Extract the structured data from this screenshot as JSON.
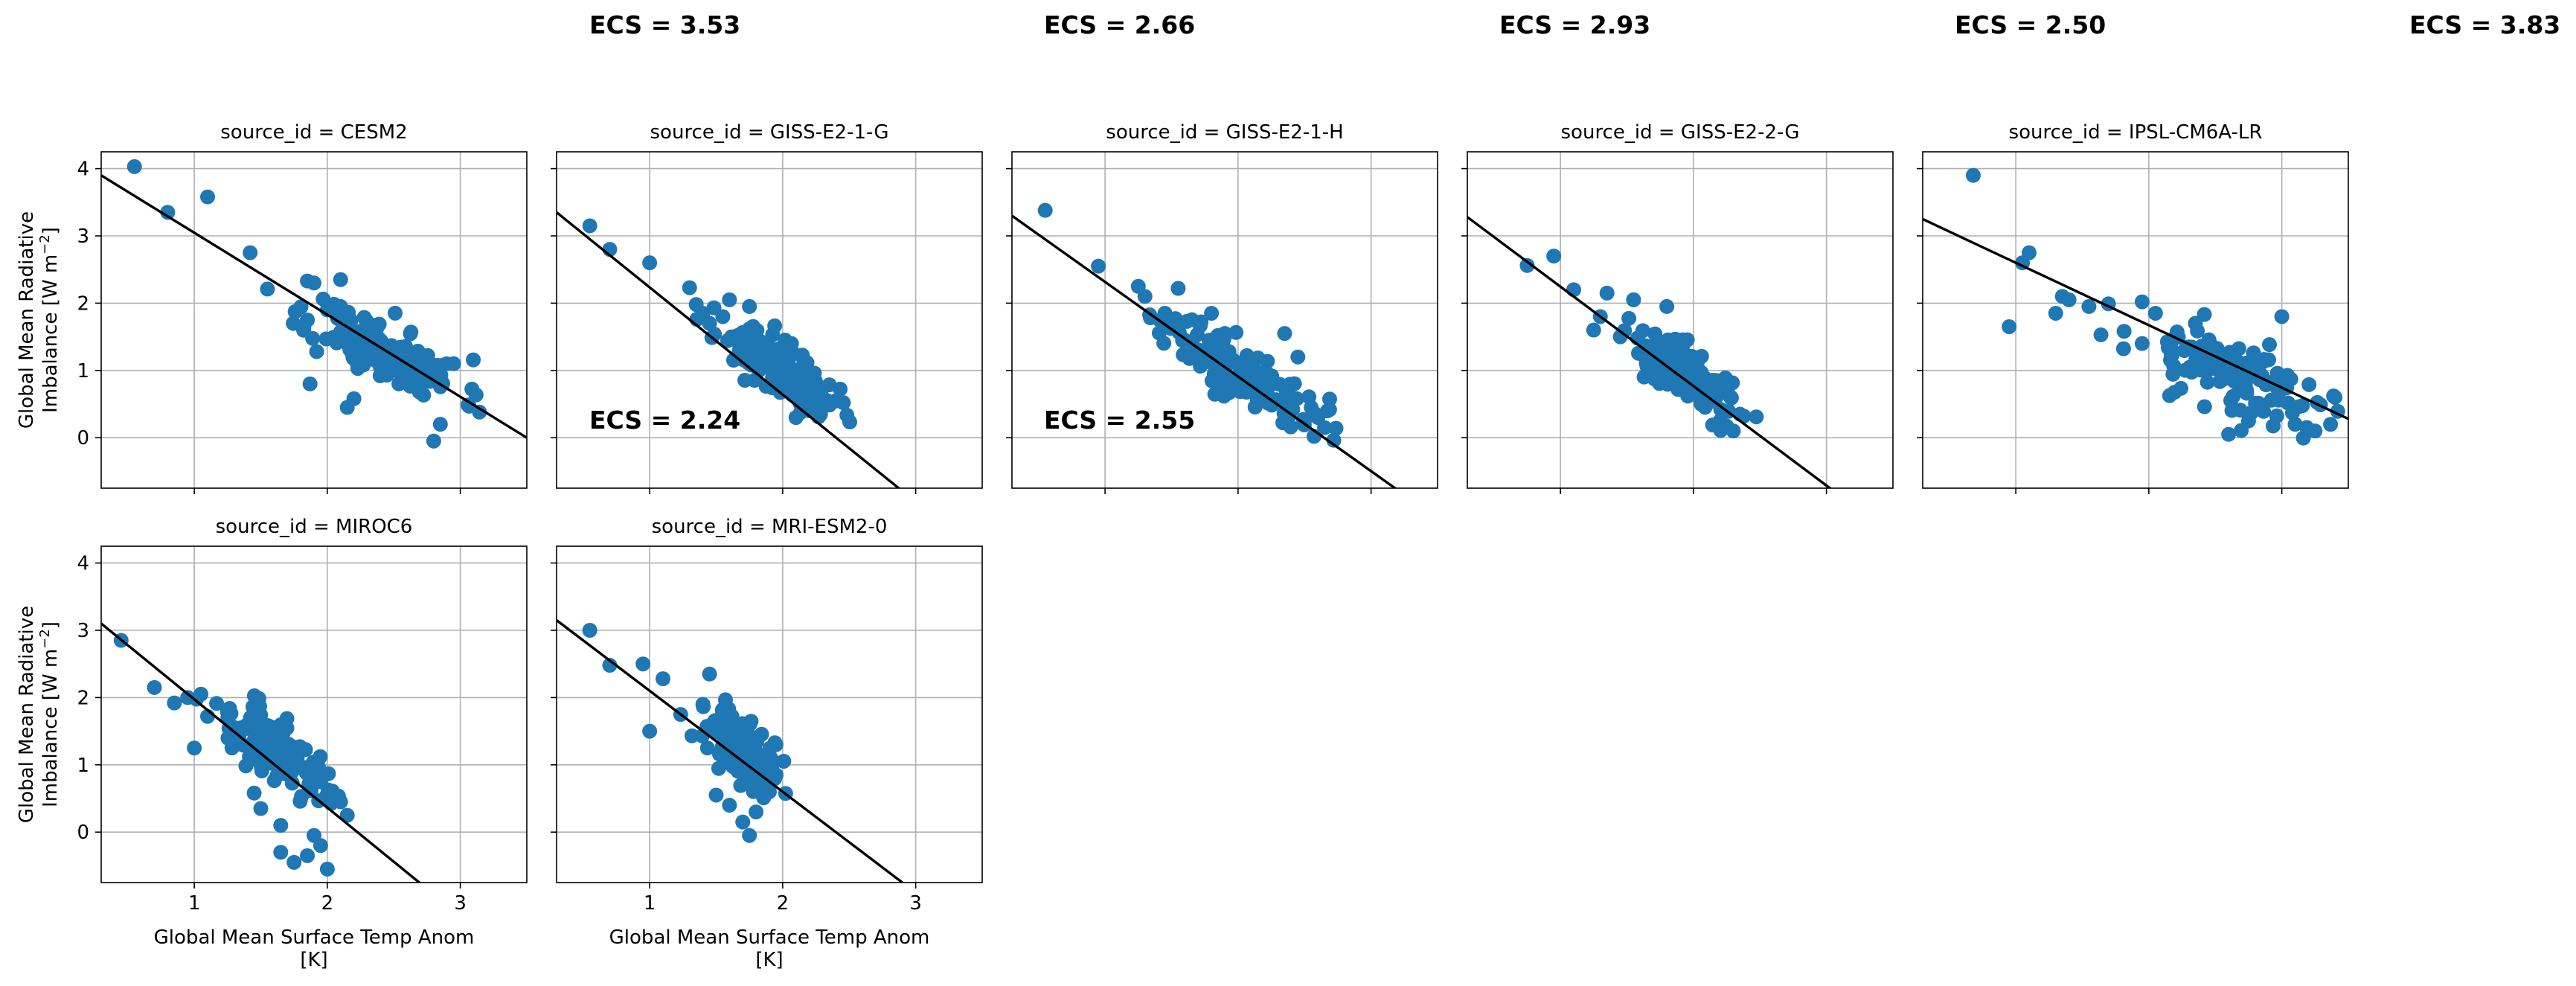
{
  "colors": {
    "point": "#1f77b4",
    "fit_line": "#000000",
    "grid": "#b0b0b0",
    "axes": "#000000",
    "background": "#ffffff"
  },
  "ecs_labels": [
    {
      "text": "ECS = 3.53",
      "facet": 0
    },
    {
      "text": "ECS = 2.66",
      "facet": 1
    },
    {
      "text": "ECS = 2.93",
      "facet": 2
    },
    {
      "text": "ECS = 2.50",
      "facet": 3
    },
    {
      "text": "ECS = 3.83",
      "facet": 4
    },
    {
      "text": "ECS = 2.24",
      "facet": 5
    },
    {
      "text": "ECS = 2.55",
      "facet": 6
    }
  ],
  "chart_data": {
    "type": "scatter",
    "grid": true,
    "sharex": true,
    "sharey": true,
    "xlim": [
      0.3,
      3.5
    ],
    "ylim": [
      -0.75,
      4.25
    ],
    "xticks": [
      "1",
      "2",
      "3"
    ],
    "yticks": [
      "0",
      "1",
      "2",
      "3",
      "4"
    ],
    "ylabel": [
      "Global Mean Radiative",
      "Imbalance [W m",
      "−2",
      "]"
    ],
    "xlabel": [
      "Global Mean Surface Temp Anom",
      "[K]"
    ],
    "facets": [
      {
        "title": "source_id = CESM2",
        "fit": {
          "x": [
            0.3,
            3.5
          ],
          "y": [
            3.9,
            0.0
          ]
        },
        "cluster": {
          "cx": 2.45,
          "cy": 1.25,
          "sx": 0.28,
          "sy": 0.32,
          "n": 130,
          "seed": 11,
          "dir": -1.1
        },
        "points": [
          [
            0.55,
            4.03
          ],
          [
            0.8,
            3.35
          ],
          [
            1.1,
            3.58
          ],
          [
            1.42,
            2.75
          ],
          [
            1.55,
            2.21
          ],
          [
            1.85,
            2.33
          ],
          [
            1.9,
            2.3
          ],
          [
            1.85,
            1.75
          ],
          [
            1.92,
            1.28
          ],
          [
            1.87,
            0.8
          ],
          [
            2.1,
            2.35
          ],
          [
            2.15,
            0.45
          ],
          [
            2.2,
            0.58
          ],
          [
            2.8,
            -0.05
          ],
          [
            2.85,
            0.2
          ],
          [
            2.95,
            1.1
          ],
          [
            2.1,
            1.95
          ],
          [
            2.0,
            1.9
          ]
        ]
      },
      {
        "title": "source_id = GISS-E2-1-G",
        "fit": {
          "x": [
            0.3,
            3.5
          ],
          "y": [
            3.35,
            -1.75
          ]
        },
        "cluster": {
          "cx": 1.95,
          "cy": 1.05,
          "sx": 0.22,
          "sy": 0.26,
          "n": 140,
          "seed": 23,
          "dir": -1.6
        },
        "points": [
          [
            0.55,
            3.15
          ],
          [
            0.7,
            2.8
          ],
          [
            1.0,
            2.6
          ],
          [
            1.3,
            2.23
          ],
          [
            1.35,
            1.98
          ],
          [
            1.4,
            1.85
          ],
          [
            1.45,
            1.7
          ],
          [
            1.55,
            1.8
          ],
          [
            1.6,
            2.05
          ],
          [
            1.75,
            1.95
          ],
          [
            2.2,
            0.4
          ],
          [
            2.4,
            0.55
          ],
          [
            2.3,
            0.6
          ],
          [
            2.1,
            0.3
          ]
        ]
      },
      {
        "title": "source_id = GISS-E2-1-H",
        "fit": {
          "x": [
            0.3,
            3.5
          ],
          "y": [
            3.3,
            -1.2
          ]
        },
        "cluster": {
          "cx": 2.05,
          "cy": 0.95,
          "sx": 0.3,
          "sy": 0.3,
          "n": 130,
          "seed": 37,
          "dir": -1.3
        },
        "points": [
          [
            0.55,
            3.38
          ],
          [
            0.95,
            2.55
          ],
          [
            1.25,
            2.25
          ],
          [
            1.3,
            2.1
          ],
          [
            1.45,
            1.85
          ],
          [
            1.55,
            2.22
          ],
          [
            1.5,
            1.75
          ],
          [
            1.6,
            1.45
          ],
          [
            1.65,
            1.2
          ],
          [
            1.8,
            1.85
          ],
          [
            1.9,
            1.55
          ],
          [
            2.35,
            1.55
          ],
          [
            2.45,
            1.2
          ],
          [
            2.6,
            0.3
          ],
          [
            2.65,
            0.15
          ],
          [
            2.55,
            0.45
          ],
          [
            2.4,
            0.55
          ]
        ]
      },
      {
        "title": "source_id = GISS-E2-2-G",
        "fit": {
          "x": [
            0.3,
            3.5
          ],
          "y": [
            3.28,
            -1.45
          ]
        },
        "cluster": {
          "cx": 1.95,
          "cy": 0.95,
          "sx": 0.2,
          "sy": 0.28,
          "n": 130,
          "seed": 41,
          "dir": -1.5
        },
        "points": [
          [
            0.75,
            2.56
          ],
          [
            0.95,
            2.7
          ],
          [
            1.1,
            2.2
          ],
          [
            1.35,
            2.15
          ],
          [
            1.55,
            2.05
          ],
          [
            1.8,
            1.95
          ],
          [
            1.3,
            1.8
          ],
          [
            1.45,
            1.5
          ],
          [
            1.25,
            1.6
          ],
          [
            2.35,
            0.35
          ],
          [
            2.3,
            0.1
          ],
          [
            2.2,
            0.25
          ]
        ]
      },
      {
        "title": "source_id = IPSL-CM6A-LR",
        "fit": {
          "x": [
            0.3,
            3.5
          ],
          "y": [
            3.25,
            0.28
          ]
        },
        "cluster": {
          "cx": 2.65,
          "cy": 0.95,
          "sx": 0.38,
          "sy": 0.38,
          "n": 130,
          "seed": 53,
          "dir": -0.9
        },
        "points": [
          [
            0.68,
            3.9
          ],
          [
            1.05,
            2.6
          ],
          [
            1.1,
            2.75
          ],
          [
            1.3,
            1.85
          ],
          [
            1.35,
            2.1
          ],
          [
            1.4,
            2.05
          ],
          [
            1.55,
            1.95
          ],
          [
            0.95,
            1.65
          ],
          [
            1.95,
            2.02
          ],
          [
            2.05,
            1.85
          ],
          [
            2.35,
            1.7
          ],
          [
            2.3,
            1.35
          ],
          [
            1.95,
            1.4
          ],
          [
            3.0,
            1.8
          ],
          [
            3.4,
            0.6
          ],
          [
            3.25,
            0.1
          ],
          [
            3.1,
            0.2
          ],
          [
            2.6,
            0.05
          ],
          [
            2.75,
            0.25
          ]
        ]
      },
      {
        "title": "source_id = MIROC6",
        "fit": {
          "x": [
            0.3,
            3.5
          ],
          "y": [
            3.1,
            -2.05
          ]
        },
        "cluster": {
          "cx": 1.6,
          "cy": 1.2,
          "sx": 0.2,
          "sy": 0.32,
          "n": 130,
          "seed": 67,
          "dir": -1.6
        },
        "points": [
          [
            0.45,
            2.85
          ],
          [
            0.7,
            2.15
          ],
          [
            0.85,
            1.92
          ],
          [
            0.95,
            2.0
          ],
          [
            1.05,
            2.05
          ],
          [
            1.1,
            1.72
          ],
          [
            1.25,
            1.82
          ],
          [
            1.0,
            1.25
          ],
          [
            1.45,
            0.58
          ],
          [
            1.5,
            0.35
          ],
          [
            1.65,
            -0.3
          ],
          [
            1.75,
            -0.45
          ],
          [
            1.85,
            -0.35
          ],
          [
            1.95,
            -0.2
          ],
          [
            1.9,
            -0.05
          ],
          [
            2.0,
            -0.55
          ],
          [
            2.1,
            0.45
          ],
          [
            2.15,
            0.25
          ],
          [
            1.65,
            0.1
          ]
        ]
      },
      {
        "title": "source_id = MRI-ESM2-0",
        "fit": {
          "x": [
            0.3,
            3.5
          ],
          "y": [
            3.15,
            -1.65
          ]
        },
        "cluster": {
          "cx": 1.7,
          "cy": 1.25,
          "sx": 0.15,
          "sy": 0.32,
          "n": 130,
          "seed": 79,
          "dir": -2.0
        },
        "points": [
          [
            0.55,
            3.0
          ],
          [
            0.7,
            2.48
          ],
          [
            0.95,
            2.5
          ],
          [
            1.0,
            1.5
          ],
          [
            1.1,
            2.28
          ],
          [
            1.4,
            1.9
          ],
          [
            1.45,
            2.35
          ],
          [
            1.5,
            0.55
          ],
          [
            1.6,
            0.4
          ],
          [
            1.7,
            0.15
          ],
          [
            1.75,
            -0.05
          ],
          [
            1.8,
            0.3
          ],
          [
            1.9,
            0.6
          ],
          [
            1.95,
            1.3
          ]
        ]
      }
    ]
  }
}
